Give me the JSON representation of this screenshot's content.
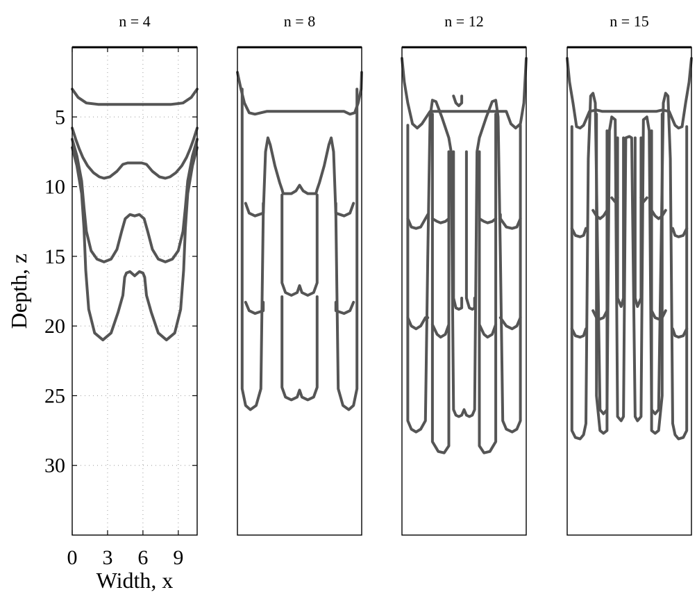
{
  "chart_data": [
    {
      "type": "line",
      "title": "n = 4",
      "xlabel": "Width, x",
      "ylabel": "Depth, z",
      "xlim": [
        0,
        10.6
      ],
      "ylim": [
        35,
        0
      ],
      "xticks": [
        "0",
        "3",
        "6",
        "9"
      ],
      "yticks": [
        "5",
        "10",
        "15",
        "20",
        "25",
        "30"
      ],
      "grid": true,
      "series": [
        {
          "x": [
            0,
            0.5,
            1.2,
            2.2,
            4,
            5.3,
            6.6,
            8.4,
            9.4,
            10.1,
            10.6
          ],
          "y": [
            3.0,
            3.6,
            4.0,
            4.1,
            4.1,
            4.1,
            4.1,
            4.1,
            4.0,
            3.6,
            3.0
          ]
        },
        {
          "x": [
            0,
            0.3,
            0.6,
            0.9,
            1.3,
            1.8,
            2.3,
            2.7,
            3.2,
            3.8,
            4.3,
            4.7,
            5.3,
            5.9,
            6.3,
            6.8,
            7.4,
            7.9,
            8.3,
            8.8,
            9.3,
            9.7,
            10.0,
            10.3,
            10.6
          ],
          "y": [
            5.8,
            6.6,
            7.3,
            7.9,
            8.5,
            9.0,
            9.3,
            9.4,
            9.3,
            8.9,
            8.4,
            8.3,
            8.3,
            8.3,
            8.4,
            8.9,
            9.3,
            9.4,
            9.3,
            9.0,
            8.5,
            7.9,
            7.3,
            6.6,
            5.8
          ]
        },
        {
          "x": [
            0,
            0.4,
            0.8,
            1.0,
            1.2,
            1.6,
            2.1,
            2.7,
            3.3,
            3.8,
            4.2,
            4.5,
            4.9,
            5.3,
            5.7,
            6.1,
            6.4,
            6.8,
            7.3,
            7.9,
            8.5,
            9.0,
            9.4,
            9.6,
            9.8,
            10.2,
            10.6
          ],
          "y": [
            6.6,
            7.8,
            9.6,
            11.5,
            13.2,
            14.6,
            15.2,
            15.4,
            15.2,
            14.5,
            13.2,
            12.3,
            12.0,
            12.1,
            12.0,
            12.3,
            13.2,
            14.5,
            15.2,
            15.4,
            15.2,
            14.6,
            13.2,
            11.5,
            9.6,
            7.8,
            6.6
          ]
        },
        {
          "x": [
            0,
            0.4,
            0.8,
            1.0,
            1.15,
            1.4,
            1.9,
            2.6,
            3.3,
            3.9,
            4.3,
            4.45,
            4.6,
            4.9,
            5.3,
            5.7,
            6.0,
            6.15,
            6.3,
            6.7,
            7.3,
            8.0,
            8.7,
            9.2,
            9.45,
            9.6,
            9.8,
            10.2,
            10.6
          ],
          "y": [
            7.2,
            8.5,
            10.5,
            13.0,
            16.0,
            18.8,
            20.5,
            21.0,
            20.5,
            19.0,
            17.8,
            16.5,
            16.2,
            16.1,
            16.4,
            16.1,
            16.2,
            16.5,
            17.8,
            19.0,
            20.5,
            21.0,
            20.5,
            18.8,
            16.0,
            13.0,
            10.5,
            8.5,
            7.2
          ]
        }
      ]
    },
    {
      "type": "line",
      "title": "n = 8",
      "xlim": [
        0,
        10.6
      ],
      "ylim": [
        35,
        0
      ],
      "series": [
        {
          "x": [
            0,
            0.05,
            0.3,
            0.6,
            1.0,
            1.5,
            2.5,
            4.0,
            5.3,
            6.6,
            8.1,
            9.1,
            9.6,
            10.0,
            10.3,
            10.55,
            10.6
          ],
          "y": [
            1.8,
            2.0,
            3.0,
            4.0,
            4.7,
            4.8,
            4.6,
            4.6,
            4.6,
            4.6,
            4.6,
            4.6,
            4.8,
            4.7,
            4.0,
            3.0,
            1.8
          ]
        },
        {
          "x": [
            0.4,
            0.4,
            0.7,
            1.1,
            1.6,
            2.0,
            2.2,
            2.4,
            2.6,
            2.8,
            3.2,
            3.6,
            3.8,
            3.9,
            4.2,
            4.6,
            5.0,
            5.3,
            5.6,
            6.0,
            6.4,
            6.7,
            6.8,
            7.0,
            7.4,
            7.8,
            8.0,
            8.2,
            8.4,
            8.6,
            9.0,
            9.5,
            9.9,
            10.2,
            10.2
          ],
          "y": [
            3.0,
            24.5,
            25.7,
            26.0,
            25.7,
            24.5,
            12.0,
            7.5,
            6.5,
            7.0,
            8.5,
            9.7,
            10.2,
            10.5,
            10.5,
            10.5,
            10.3,
            9.9,
            10.3,
            10.5,
            10.5,
            10.5,
            10.2,
            9.7,
            8.5,
            7.0,
            6.5,
            7.5,
            12.0,
            24.5,
            25.7,
            26.0,
            25.7,
            24.5,
            3.0
          ]
        },
        {
          "x": [
            0.7,
            1.0,
            1.5,
            2.2,
            2.2
          ],
          "y": [
            11.2,
            11.9,
            12.1,
            11.9,
            11.2
          ]
        },
        {
          "x": [
            8.4,
            8.4,
            9.1,
            9.6,
            9.9
          ],
          "y": [
            11.2,
            11.9,
            12.1,
            11.9,
            11.2
          ]
        },
        {
          "x": [
            0.7,
            1.0,
            1.5,
            2.2,
            2.2
          ],
          "y": [
            18.3,
            18.9,
            19.1,
            18.9,
            18.3
          ]
        },
        {
          "x": [
            8.4,
            8.4,
            9.1,
            9.6,
            9.9
          ],
          "y": [
            18.3,
            18.9,
            19.1,
            18.9,
            18.3
          ]
        },
        {
          "x": [
            3.8,
            3.8,
            4.1,
            4.6,
            5.1,
            5.3,
            5.5,
            6.0,
            6.5,
            6.8,
            6.8
          ],
          "y": [
            10.6,
            16.9,
            17.6,
            17.8,
            17.6,
            17.1,
            17.6,
            17.8,
            17.6,
            16.9,
            10.6
          ]
        },
        {
          "x": [
            3.8,
            3.8,
            4.1,
            4.6,
            5.1,
            5.3,
            5.5,
            6.0,
            6.5,
            6.8,
            6.8
          ],
          "y": [
            17.9,
            24.4,
            25.1,
            25.3,
            25.1,
            24.6,
            25.1,
            25.3,
            25.1,
            24.4,
            17.9
          ]
        }
      ]
    },
    {
      "type": "line",
      "title": "n = 12",
      "xlim": [
        0,
        10.6
      ],
      "ylim": [
        35,
        0
      ],
      "series": [
        {
          "x": [
            0,
            0.2,
            0.5,
            0.9,
            1.3,
            1.7,
            2.4,
            3.5,
            5.3,
            7.1,
            8.2,
            8.9,
            9.3,
            9.7,
            10.1,
            10.4,
            10.6
          ],
          "y": [
            0.8,
            2.5,
            4.0,
            5.5,
            5.8,
            5.5,
            4.6,
            4.6,
            4.6,
            4.6,
            4.6,
            4.6,
            5.5,
            5.8,
            5.5,
            4.0,
            0.8
          ]
        },
        {
          "x": [
            0.5,
            0.5,
            0.8,
            1.2,
            1.6,
            2.0,
            2.2,
            2.4,
            2.6,
            2.9,
            3.4,
            4.0,
            4.2,
            4.4,
            4.6,
            4.85,
            5.1,
            5.3,
            5.5,
            5.75,
            6.0,
            6.2,
            6.4,
            6.6,
            7.2,
            7.7,
            8.0,
            8.2,
            8.4,
            8.6,
            8.9,
            9.4,
            9.8,
            10.1,
            10.1
          ],
          "y": [
            5.6,
            26.8,
            27.4,
            27.6,
            27.4,
            26.8,
            15.0,
            5.0,
            3.8,
            3.9,
            5.0,
            6.5,
            7.5,
            26.0,
            26.4,
            26.5,
            26.4,
            26.0,
            26.4,
            26.5,
            26.4,
            26.0,
            7.5,
            6.5,
            5.0,
            3.9,
            3.8,
            5.0,
            15.0,
            26.8,
            27.4,
            27.6,
            27.4,
            26.8,
            5.6
          ]
        },
        {
          "x": [
            2.6,
            2.6,
            3.1,
            3.6,
            4.0,
            4.0
          ],
          "y": [
            4.8,
            28.3,
            29.0,
            29.1,
            28.6,
            7.5
          ]
        },
        {
          "x": [
            6.6,
            6.6,
            7.0,
            7.5,
            8.0,
            8.0
          ],
          "y": [
            7.5,
            28.6,
            29.1,
            29.0,
            28.3,
            4.8
          ]
        },
        {
          "x": [
            4.4,
            4.4,
            4.6,
            4.85,
            5.1,
            5.1
          ],
          "y": [
            7.5,
            18.0,
            18.7,
            18.8,
            18.7,
            18.0
          ]
        },
        {
          "x": [
            5.5,
            5.5,
            5.75,
            6.0,
            6.2,
            6.2
          ],
          "y": [
            7.5,
            18.0,
            18.7,
            18.8,
            18.7,
            18.0
          ]
        },
        {
          "x": [
            4.4,
            4.6,
            4.85,
            5.1,
            5.1
          ],
          "y": [
            3.5,
            4.0,
            4.2,
            4.0,
            3.5
          ]
        },
        {
          "x": [
            0.5,
            0.8,
            1.2,
            1.6,
            2.0,
            2.2,
            2.2
          ],
          "y": [
            12.3,
            12.9,
            13.0,
            12.9,
            12.3,
            12.0,
            12.0
          ]
        },
        {
          "x": [
            8.4,
            8.4,
            8.9,
            9.4,
            9.8,
            10.1
          ],
          "y": [
            12.0,
            12.3,
            12.9,
            13.0,
            12.9,
            12.3
          ]
        },
        {
          "x": [
            0.5,
            0.8,
            1.2,
            1.6,
            2.0,
            2.2
          ],
          "y": [
            19.4,
            20.0,
            20.2,
            20.0,
            19.4,
            19.4
          ]
        },
        {
          "x": [
            8.4,
            8.9,
            9.4,
            9.8,
            10.1
          ],
          "y": [
            19.4,
            20.0,
            20.2,
            20.0,
            19.4
          ]
        },
        {
          "x": [
            2.6,
            3.0,
            3.3,
            3.7,
            4.0
          ],
          "y": [
            12.3,
            12.5,
            12.6,
            12.5,
            12.3
          ]
        },
        {
          "x": [
            6.6,
            7.0,
            7.3,
            7.7,
            8.0
          ],
          "y": [
            12.3,
            12.5,
            12.6,
            12.5,
            12.3
          ]
        },
        {
          "x": [
            2.6,
            3.0,
            3.3,
            3.7,
            4.0
          ],
          "y": [
            19.9,
            20.6,
            20.8,
            20.6,
            19.9
          ]
        },
        {
          "x": [
            6.6,
            7.0,
            7.3,
            7.7,
            8.0
          ],
          "y": [
            19.9,
            20.6,
            20.8,
            20.6,
            19.9
          ]
        }
      ]
    },
    {
      "type": "line",
      "title": "n = 15",
      "xlim": [
        0,
        10.6
      ],
      "ylim": [
        35,
        0
      ],
      "series": [
        {
          "x": [
            0,
            0.2,
            0.5,
            0.8,
            1.1,
            1.4,
            1.9,
            2.5,
            3.0,
            4.0,
            5.3,
            6.6,
            7.6,
            8.1,
            8.7,
            9.2,
            9.5,
            9.8,
            10.1,
            10.4,
            10.6
          ],
          "y": [
            0.8,
            2.5,
            4.0,
            5.7,
            5.8,
            5.6,
            4.6,
            4.5,
            4.6,
            4.6,
            4.6,
            4.6,
            4.6,
            4.5,
            4.6,
            5.6,
            5.8,
            5.7,
            4.0,
            2.5,
            0.8
          ]
        },
        {
          "x": [
            0.4,
            0.4,
            0.7,
            1.1,
            1.4,
            1.6,
            1.8,
            2.0,
            2.2,
            2.4,
            2.8,
            3.1,
            3.4,
            3.6,
            3.8,
            4.1,
            4.3,
            4.6,
            4.8,
            5.0,
            5.3,
            5.5,
            5.8,
            6.0,
            6.3,
            6.5,
            6.8,
            7.0,
            7.2,
            7.5,
            7.8,
            8.2,
            8.4,
            8.6,
            8.8,
            9.0,
            9.2,
            9.5,
            9.9,
            10.2,
            10.2
          ],
          "y": [
            5.7,
            27.5,
            28.0,
            28.1,
            27.8,
            27.0,
            8.0,
            3.5,
            3.3,
            4.0,
            26.0,
            26.3,
            26.0,
            6.0,
            5.0,
            5.2,
            26.5,
            26.8,
            26.5,
            6.5,
            6.4,
            6.5,
            26.5,
            26.8,
            26.5,
            5.2,
            5.0,
            6.0,
            26.0,
            26.3,
            26.0,
            4.0,
            3.3,
            3.5,
            8.0,
            27.0,
            27.8,
            28.1,
            28.0,
            27.5,
            5.7
          ]
        },
        {
          "x": [
            2.5,
            2.5,
            2.8,
            3.1,
            3.4,
            3.4
          ],
          "y": [
            4.8,
            25.0,
            27.5,
            27.7,
            27.5,
            6.0
          ]
        },
        {
          "x": [
            7.2,
            7.2,
            7.5,
            7.8,
            8.1,
            8.1
          ],
          "y": [
            6.0,
            27.5,
            27.7,
            27.5,
            25.0,
            4.8
          ]
        },
        {
          "x": [
            4.3,
            4.3,
            4.6,
            4.8,
            4.8
          ],
          "y": [
            6.5,
            18.0,
            18.6,
            18.0,
            6.5
          ]
        },
        {
          "x": [
            5.8,
            5.8,
            6.0,
            6.3,
            6.3
          ],
          "y": [
            6.5,
            18.0,
            18.6,
            18.0,
            6.5
          ]
        },
        {
          "x": [
            0.4,
            0.7,
            1.1,
            1.4,
            1.6
          ],
          "y": [
            13.0,
            13.5,
            13.6,
            13.5,
            13.0
          ]
        },
        {
          "x": [
            9.0,
            9.2,
            9.5,
            9.9,
            10.2
          ],
          "y": [
            13.0,
            13.5,
            13.6,
            13.5,
            13.0
          ]
        },
        {
          "x": [
            0.4,
            0.7,
            1.1,
            1.4,
            1.6
          ],
          "y": [
            20.2,
            20.7,
            20.8,
            20.7,
            20.2
          ]
        },
        {
          "x": [
            9.0,
            9.2,
            9.5,
            9.9,
            10.2
          ],
          "y": [
            20.2,
            20.7,
            20.8,
            20.7,
            20.2
          ]
        },
        {
          "x": [
            2.2,
            2.5,
            2.8,
            3.1,
            3.4
          ],
          "y": [
            11.7,
            12.1,
            12.3,
            12.1,
            11.7
          ]
        },
        {
          "x": [
            7.2,
            7.5,
            7.8,
            8.1,
            8.4
          ],
          "y": [
            11.7,
            12.1,
            12.3,
            12.1,
            11.7
          ]
        },
        {
          "x": [
            2.2,
            2.5,
            2.8,
            3.1,
            3.4
          ],
          "y": [
            18.9,
            19.4,
            19.5,
            19.4,
            18.9
          ]
        },
        {
          "x": [
            7.2,
            7.5,
            7.8,
            8.1,
            8.4
          ],
          "y": [
            18.9,
            19.4,
            19.5,
            19.4,
            18.9
          ]
        },
        {
          "x": [
            3.8,
            4.1,
            4.3
          ],
          "y": [
            10.8,
            11.1,
            10.8
          ]
        },
        {
          "x": [
            6.3,
            6.5,
            6.8
          ],
          "y": [
            10.8,
            11.1,
            10.8
          ]
        }
      ]
    }
  ]
}
